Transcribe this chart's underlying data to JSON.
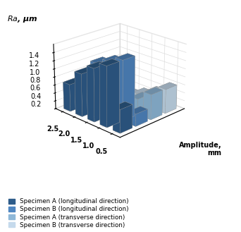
{
  "amplitudes": [
    0.5,
    1.0,
    1.5,
    2.0,
    2.5
  ],
  "series_names": [
    "Specimen A (longitudinal direction)",
    "Specimen B (longitudinal direction)",
    "Specimen A (transverse direction)",
    "Specimen B (transverse direction)"
  ],
  "values": [
    [
      0.57,
      1.47,
      1.3,
      1.05,
      0.67
    ],
    [
      0.3,
      1.47,
      1.32,
      1.17,
      0.75
    ],
    [
      0.62,
      0.38,
      0.2,
      0.13,
      0.2
    ],
    [
      0.6,
      0.38,
      0.22,
      0.1,
      0.28
    ]
  ],
  "colors": [
    "#2E5C8A",
    "#4F86C1",
    "#8FB8D8",
    "#C5DAEC"
  ],
  "ylabel": "Ra, μm",
  "xlabel": "Amplitude,\nmm",
  "zlim": [
    0,
    1.6
  ],
  "zticks": [
    0,
    0.2,
    0.4,
    0.6,
    0.8,
    1.0,
    1.2,
    1.4
  ],
  "legend_order": [
    "Specimen A (longitudinal direction)",
    "Specimen B (longitudinal direction)",
    "Specimen A (transverse direction)",
    "Specimen B (transverse direction)"
  ]
}
